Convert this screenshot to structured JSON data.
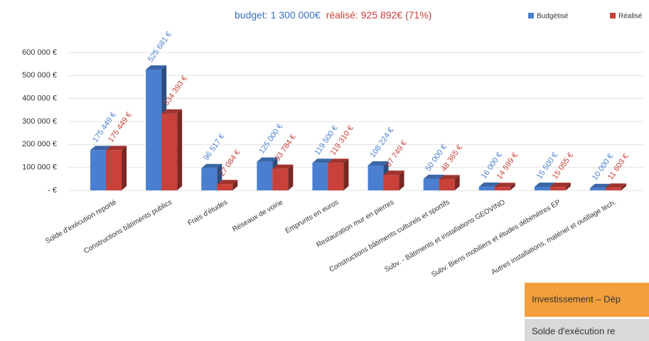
{
  "chart_data": {
    "type": "bar3d",
    "subtitle_budget": "budget: 1 300 000€",
    "subtitle_realise": "réalisé: 925 892€ (71%)",
    "categories": [
      "Solde d'exécution reporté",
      "Constructions  bâtiments publics",
      "Frais d'études",
      "Réseaux de voirie",
      "Emprunts en euros",
      "Restauration  mur en pierres",
      "Constructions bâtiments culturels et sportifs",
      "Subv. - Bâtiments et installations GEOVINO",
      "Subv. Biens mobiliers et études débimètres EP",
      "Autres installations, matériel et outillage tech."
    ],
    "series": [
      {
        "name": "Budgétisé",
        "color": "#4a7fd0",
        "values": [
          175449,
          525681,
          96517,
          125000,
          119500,
          108224,
          50000,
          16000,
          15500,
          10000
        ],
        "value_labels": [
          "175 449 €",
          "525 681 €",
          "96 517 €",
          "125 000 €",
          "119 500 €",
          "108 224 €",
          "50 000 €",
          "16 000 €",
          "15 500 €",
          "10 000 €"
        ]
      },
      {
        "name": "Réalisé",
        "color": "#c8413a",
        "values": [
          175449,
          334393,
          27084,
          93784,
          119310,
          67749,
          48365,
          14599,
          15055,
          11603
        ],
        "value_labels": [
          "175 449 €",
          "334 393 €",
          "27 084 €",
          "93 784 €",
          "119 310 €",
          "67 749 €",
          "48 365 €",
          "14 599 €",
          "15 055 €",
          "11 603 €"
        ]
      }
    ],
    "ylim": [
      0,
      600000
    ],
    "yticks": [
      {
        "value": 0,
        "label": "- €"
      },
      {
        "value": 100000,
        "label": "100 000 €"
      },
      {
        "value": 200000,
        "label": "200 000 €"
      },
      {
        "value": 300000,
        "label": "300 000 €"
      },
      {
        "value": 400000,
        "label": "400 000 €"
      },
      {
        "value": 500000,
        "label": "500 000 €"
      },
      {
        "value": 600000,
        "label": "600 000 €"
      }
    ],
    "grid": true,
    "legend": "top-right"
  },
  "table": {
    "header": "Investissement – Dép",
    "rows": [
      [
        "Solde d'exécution re"
      ]
    ]
  }
}
